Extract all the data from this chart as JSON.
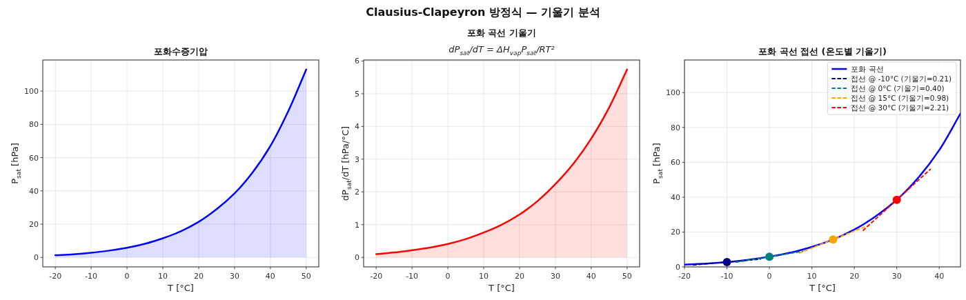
{
  "chart_data": [
    {
      "type": "other",
      "title": "Clausius-Clapeyron 방정식 — 기울기 분석"
    },
    {
      "type": "area",
      "title": "포화수증기압",
      "xlabel": "T [°C]",
      "ylabel": "P$_{sat}$ [hPa]",
      "x": [
        -20,
        -15,
        -10,
        -5,
        0,
        5,
        10,
        15,
        20,
        25,
        30,
        35,
        40,
        45,
        50
      ],
      "series": [
        {
          "color": "#0000ff",
          "values": [
            1.3,
            1.9,
            2.8,
            4.1,
            5.8,
            8.2,
            11.5,
            15.7,
            21.4,
            29,
            38.5,
            51,
            67,
            88,
            113
          ]
        }
      ],
      "xlim": [
        -23.5,
        53.5
      ],
      "ylim": [
        -5.7,
        118.7
      ],
      "xticks": [
        -20,
        -10,
        0,
        10,
        20,
        30,
        40,
        50
      ],
      "yticks": [
        0,
        20,
        40,
        60,
        80,
        100
      ],
      "grid": true
    },
    {
      "type": "area",
      "title": "포화 곡선 기울기",
      "subtitle": "dP$_{sat}$/dT = ΔH$_{vap}$P$_{sat}$/RT²",
      "xlabel": "T [°C]",
      "ylabel": "dP$_{sat}$/dT [hPa/°C]",
      "x": [
        -20,
        -15,
        -10,
        -5,
        0,
        5,
        10,
        15,
        20,
        25,
        30,
        35,
        40,
        45,
        50
      ],
      "series": [
        {
          "color": "#ff0000",
          "values": [
            0.1,
            0.15,
            0.22,
            0.3,
            0.41,
            0.56,
            0.76,
            1.0,
            1.31,
            1.72,
            2.24,
            2.86,
            3.63,
            4.58,
            5.74
          ]
        }
      ],
      "xlim": [
        -23.5,
        53.5
      ],
      "ylim": [
        -0.29,
        6.03
      ],
      "xticks": [
        -20,
        -10,
        0,
        10,
        20,
        30,
        40,
        50
      ],
      "yticks": [
        0,
        1,
        2,
        3,
        4,
        5,
        6
      ],
      "grid": true
    },
    {
      "type": "line",
      "title": "포화 곡선 접선 (온도별 기울기)",
      "xlabel": "T [°C]",
      "ylabel": "P$_{sat}$ [hPa]",
      "x": [
        -20,
        -15,
        -10,
        -5,
        0,
        5,
        10,
        15,
        20,
        25,
        30,
        35,
        40,
        45
      ],
      "series": [
        {
          "name": "포화 곡선",
          "color": "#0000ff",
          "values": [
            1.3,
            1.9,
            2.8,
            4.1,
            5.8,
            8.2,
            11.5,
            15.7,
            21.4,
            29,
            38.5,
            51,
            67,
            88
          ]
        },
        {
          "name": "접선 @ -10°C (기울기=0.21)",
          "color": "#000080",
          "line_style": "dashed",
          "x": [
            -18,
            -2
          ],
          "values": [
            1.1,
            4.5
          ]
        },
        {
          "name": "접선 @ 0°C (기울기=0.40)",
          "color": "#008080",
          "line_style": "dashed",
          "x": [
            -8,
            8
          ],
          "values": [
            2.6,
            9.0
          ]
        },
        {
          "name": "접선 @ 15°C (기울기=0.98)",
          "color": "#ffa500",
          "line_style": "dashed",
          "x": [
            7,
            23
          ],
          "values": [
            7.9,
            23.5
          ]
        },
        {
          "name": "접선 @ 30°C (기울기=2.21)",
          "color": "#ff0000",
          "line_style": "dashed",
          "x": [
            22,
            38
          ],
          "values": [
            20.8,
            56.2
          ]
        },
        {
          "type": "scatter",
          "marker": "circle",
          "x": [
            -10,
            0,
            15,
            30
          ],
          "values": [
            2.8,
            5.8,
            15.7,
            38.5
          ],
          "colors": [
            "#000080",
            "#008080",
            "#ffa500",
            "#ff0000"
          ]
        }
      ],
      "xlim": [
        -20,
        45
      ],
      "ylim": [
        0,
        118.7
      ],
      "xticks": [
        -20,
        -10,
        0,
        10,
        20,
        30,
        40
      ],
      "yticks": [
        0,
        20,
        40,
        60,
        80,
        100
      ],
      "grid": true,
      "legend": "top right"
    }
  ]
}
